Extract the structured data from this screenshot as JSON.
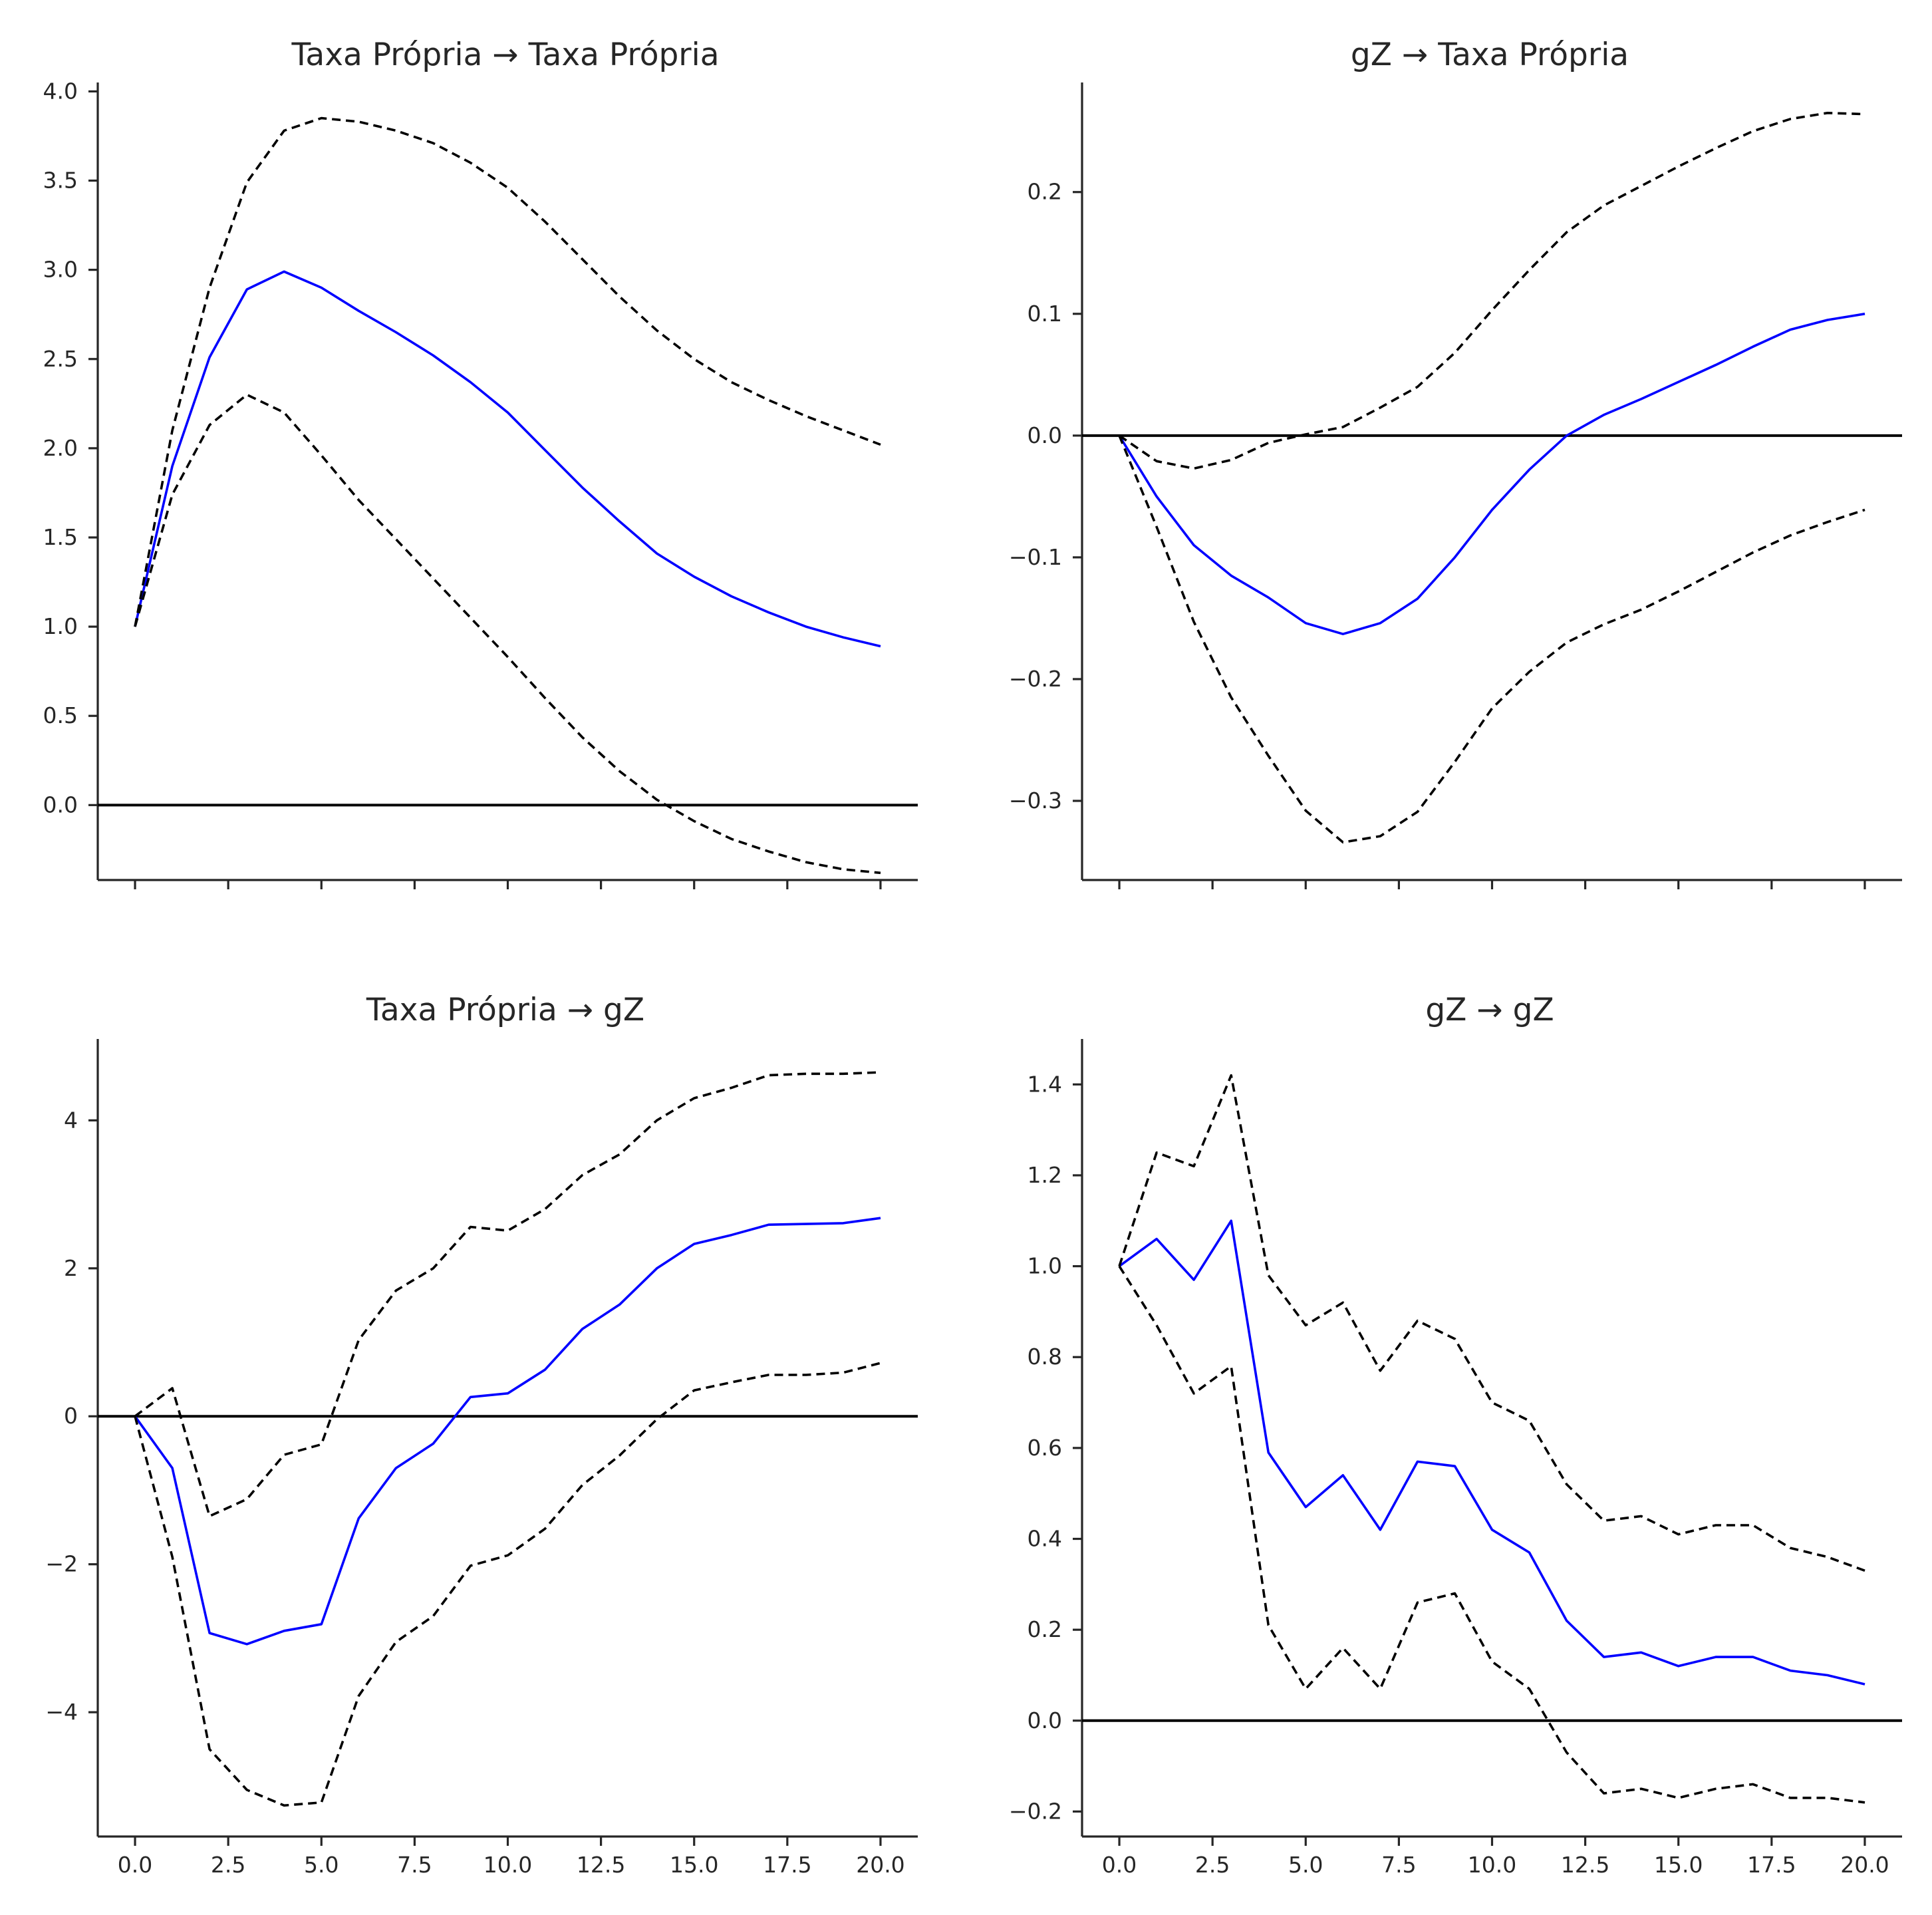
{
  "colors": {
    "irf": "#0000ff",
    "band": "#000000",
    "zero_line": "#000000",
    "axis": "#262626"
  },
  "chart_data": [
    {
      "type": "line",
      "title": "Taxa Própria → Taxa Própria",
      "grid": false,
      "xlim": [
        -1,
        21
      ],
      "ylim": [
        -0.42,
        4.05
      ],
      "xticks": [
        0,
        2.5,
        5,
        7.5,
        10,
        12.5,
        15,
        17.5,
        20
      ],
      "xtick_labels": [],
      "yticks": [
        0.0,
        0.5,
        1.0,
        1.5,
        2.0,
        2.5,
        3.0,
        3.5,
        4.0
      ],
      "ytick_labels": [
        "0.0",
        "0.5",
        "1.0",
        "1.5",
        "2.0",
        "2.5",
        "3.0",
        "3.5",
        "4.0"
      ],
      "zero_line": 0,
      "x": [
        0,
        1,
        2,
        3,
        4,
        5,
        6,
        7,
        8,
        9,
        10,
        11,
        12,
        13,
        14,
        15,
        16,
        17,
        18,
        19,
        20
      ],
      "series": [
        {
          "values": [
            1.0,
            1.9,
            2.51,
            2.89,
            2.99,
            2.9,
            2.77,
            2.65,
            2.52,
            2.37,
            2.2,
            1.99,
            1.78,
            1.59,
            1.41,
            1.28,
            1.17,
            1.08,
            1.0,
            0.94,
            0.89
          ]
        },
        {
          "values": [
            1.0,
            2.1,
            2.9,
            3.49,
            3.78,
            3.85,
            3.83,
            3.78,
            3.71,
            3.6,
            3.46,
            3.27,
            3.06,
            2.85,
            2.66,
            2.5,
            2.37,
            2.27,
            2.18,
            2.1,
            2.02
          ]
        },
        {
          "values": [
            1.0,
            1.74,
            2.13,
            2.3,
            2.2,
            1.96,
            1.71,
            1.49,
            1.27,
            1.05,
            0.83,
            0.6,
            0.38,
            0.19,
            0.03,
            -0.09,
            -0.19,
            -0.26,
            -0.32,
            -0.36,
            -0.38
          ]
        }
      ]
    },
    {
      "type": "line",
      "title": "gZ → Taxa Própria",
      "grid": false,
      "xlim": [
        -1,
        21
      ],
      "ylim": [
        -0.365,
        0.29
      ],
      "xticks": [
        0,
        2.5,
        5,
        7.5,
        10,
        12.5,
        15,
        17.5,
        20
      ],
      "xtick_labels": [],
      "yticks": [
        -0.3,
        -0.2,
        -0.1,
        0.0,
        0.1,
        0.2
      ],
      "ytick_labels": [
        "−0.3",
        "−0.2",
        "−0.1",
        "0.0",
        "0.1",
        "0.2"
      ],
      "zero_line": 0,
      "x": [
        0,
        1,
        2,
        3,
        4,
        5,
        6,
        7,
        8,
        9,
        10,
        11,
        12,
        13,
        14,
        15,
        16,
        17,
        18,
        19,
        20
      ],
      "series": [
        {
          "values": [
            0.0,
            -0.05,
            -0.09,
            -0.115,
            -0.133,
            -0.154,
            -0.163,
            -0.154,
            -0.134,
            -0.1,
            -0.061,
            -0.028,
            0.0,
            0.017,
            0.03,
            0.044,
            0.058,
            0.073,
            0.087,
            0.095,
            0.1
          ]
        },
        {
          "values": [
            0.0,
            -0.021,
            -0.027,
            -0.02,
            -0.006,
            0.001,
            0.007,
            0.023,
            0.04,
            0.068,
            0.103,
            0.136,
            0.167,
            0.189,
            0.205,
            0.221,
            0.236,
            0.25,
            0.26,
            0.265,
            0.264
          ]
        },
        {
          "values": [
            0.0,
            -0.075,
            -0.153,
            -0.215,
            -0.263,
            -0.308,
            -0.334,
            -0.329,
            -0.309,
            -0.268,
            -0.224,
            -0.194,
            -0.17,
            -0.155,
            -0.143,
            -0.128,
            -0.112,
            -0.096,
            -0.082,
            -0.071,
            -0.061
          ]
        }
      ]
    },
    {
      "type": "line",
      "title": "Taxa Própria → gZ",
      "grid": false,
      "xlim": [
        -1,
        21
      ],
      "ylim": [
        -5.68,
        5.1
      ],
      "xticks": [
        0,
        2.5,
        5,
        7.5,
        10,
        12.5,
        15,
        17.5,
        20
      ],
      "xtick_labels": [
        "0.0",
        "2.5",
        "5.0",
        "7.5",
        "10.0",
        "12.5",
        "15.0",
        "17.5",
        "20.0"
      ],
      "yticks": [
        -4,
        -2,
        0,
        2,
        4
      ],
      "ytick_labels": [
        "−4",
        "−2",
        "0",
        "2",
        "4"
      ],
      "zero_line": 0,
      "x": [
        0,
        1,
        2,
        3,
        4,
        5,
        6,
        7,
        8,
        9,
        10,
        11,
        12,
        13,
        14,
        15,
        16,
        17,
        18,
        19,
        20
      ],
      "series": [
        {
          "values": [
            0.0,
            -0.7,
            -2.93,
            -3.08,
            -2.9,
            -2.81,
            -1.38,
            -0.7,
            -0.37,
            0.26,
            0.31,
            0.63,
            1.18,
            1.51,
            2.0,
            2.33,
            2.45,
            2.59,
            2.6,
            2.61,
            2.68
          ]
        },
        {
          "values": [
            0.0,
            0.38,
            -1.35,
            -1.12,
            -0.52,
            -0.38,
            1.03,
            1.7,
            2.0,
            2.56,
            2.51,
            2.8,
            3.26,
            3.54,
            4.0,
            4.3,
            4.44,
            4.61,
            4.63,
            4.63,
            4.65
          ]
        },
        {
          "values": [
            0.0,
            -1.9,
            -4.5,
            -5.05,
            -5.26,
            -5.22,
            -3.78,
            -3.05,
            -2.7,
            -2.02,
            -1.88,
            -1.52,
            -0.93,
            -0.53,
            -0.04,
            0.35,
            0.46,
            0.56,
            0.56,
            0.59,
            0.72
          ]
        }
      ]
    },
    {
      "type": "line",
      "title": "gZ → gZ",
      "grid": false,
      "xlim": [
        -1,
        21
      ],
      "ylim": [
        -0.255,
        1.5
      ],
      "xticks": [
        0,
        2.5,
        5,
        7.5,
        10,
        12.5,
        15,
        17.5,
        20
      ],
      "xtick_labels": [
        "0.0",
        "2.5",
        "5.0",
        "7.5",
        "10.0",
        "12.5",
        "15.0",
        "17.5",
        "20.0"
      ],
      "yticks": [
        -0.2,
        0.0,
        0.2,
        0.4,
        0.6,
        0.8,
        1.0,
        1.2,
        1.4
      ],
      "ytick_labels": [
        "−0.2",
        "0.0",
        "0.2",
        "0.4",
        "0.6",
        "0.8",
        "1.0",
        "1.2",
        "1.4"
      ],
      "zero_line": 0,
      "x": [
        0,
        1,
        2,
        3,
        4,
        5,
        6,
        7,
        8,
        9,
        10,
        11,
        12,
        13,
        14,
        15,
        16,
        17,
        18,
        19,
        20
      ],
      "series": [
        {
          "values": [
            1.0,
            1.06,
            0.97,
            1.1,
            0.59,
            0.47,
            0.54,
            0.42,
            0.57,
            0.56,
            0.42,
            0.37,
            0.22,
            0.14,
            0.15,
            0.12,
            0.14,
            0.14,
            0.11,
            0.1,
            0.08
          ]
        },
        {
          "values": [
            1.0,
            1.25,
            1.22,
            1.42,
            0.98,
            0.87,
            0.92,
            0.77,
            0.88,
            0.84,
            0.7,
            0.66,
            0.52,
            0.44,
            0.45,
            0.41,
            0.43,
            0.43,
            0.38,
            0.36,
            0.33
          ]
        },
        {
          "values": [
            1.0,
            0.87,
            0.72,
            0.78,
            0.21,
            0.07,
            0.16,
            0.07,
            0.26,
            0.28,
            0.13,
            0.07,
            -0.07,
            -0.16,
            -0.15,
            -0.17,
            -0.15,
            -0.14,
            -0.17,
            -0.17,
            -0.18
          ]
        }
      ]
    }
  ]
}
